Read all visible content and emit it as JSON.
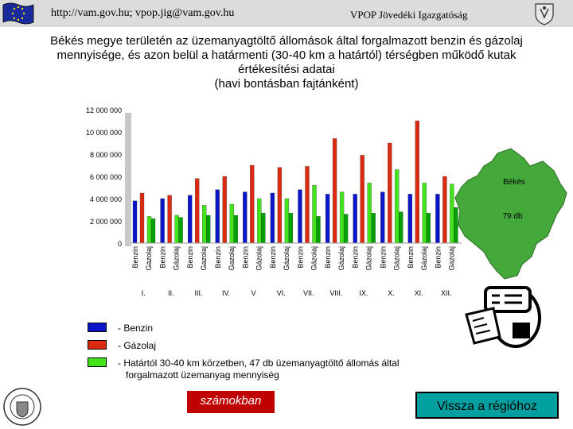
{
  "header": {
    "contact": "http://vam.gov.hu; vpop.jig@vam.gov.hu",
    "org": "VPOP Jövedéki Igazgatóság"
  },
  "title_lines": [
    "Békés megye területén az üzemanyagtöltő állomások által forgalmazott benzin és gázolaj",
    "mennyisége, és azon belül a határmenti (30-40 km a határtól) térségben működő kutak",
    "értékesítési adatai",
    "(havi bontásban fajtánként)"
  ],
  "map": {
    "name": "Békés",
    "count": "79 db",
    "color": "#44a83a"
  },
  "chart_data": {
    "type": "bar",
    "categories": [
      "I.",
      "II.",
      "III.",
      "IV.",
      "V",
      "VI.",
      "VII.",
      "VIII.",
      "IX.",
      "X.",
      "XI.",
      "XII."
    ],
    "bar_labels": [
      "Benzin",
      "Gázolaj",
      "Gazolaj"
    ],
    "series": [
      {
        "name": "Benzin",
        "color": "#0a14c8",
        "values": [
          3800000,
          4000000,
          4300000,
          4800000,
          4600000,
          4500000,
          4800000,
          4400000,
          4400000,
          4600000,
          4400000,
          4400000
        ]
      },
      {
        "name": "Gázolaj",
        "color": "#dc2a10",
        "values": [
          4500000,
          4300000,
          5800000,
          6000000,
          7000000,
          6800000,
          6900000,
          9400000,
          7900000,
          9000000,
          11000000,
          6000000
        ]
      },
      {
        "name": "Határtól 30-40 km körzetben, 47 db üzemanyagtöltő állomás által forgalmazott üzemanyag mennyiség",
        "color": "#44e41c",
        "values": [
          2400000,
          2500000,
          3400000,
          3500000,
          4000000,
          4000000,
          5200000,
          4600000,
          5400000,
          6600000,
          5400000,
          5300000
        ]
      },
      {
        "name": "",
        "color": "#00a000",
        "values": [
          2200000,
          2300000,
          2500000,
          2500000,
          2700000,
          2700000,
          2400000,
          2600000,
          2700000,
          2800000,
          2700000,
          3200000
        ]
      }
    ],
    "yticks": [
      "0",
      "2 000 000",
      "4 000 000",
      "6 000 000",
      "8 000 000",
      "10 000 000",
      "12 000 000"
    ],
    "ylim": [
      0,
      12000000
    ],
    "grid": false,
    "legend_position": "bottom-left"
  },
  "legend": [
    {
      "label": "- Benzin",
      "color": "#0a14c8"
    },
    {
      "label": "- Gázolaj",
      "color": "#dc2a10"
    },
    {
      "label": "- Határtól 30-40 km körzetben, 47 db üzemanyagtöltő állomás által",
      "label2": "forgalmazott üzemanyag mennyiség",
      "color": "#44e41c"
    }
  ],
  "buttons": {
    "numbers": "számokban",
    "back": "Vissza a régióhoz"
  },
  "icons": {
    "eu_flag": "eu-flag-icon",
    "crest": "crest-icon",
    "seal": "customs-seal-icon",
    "tax": "tax-form-icon"
  }
}
